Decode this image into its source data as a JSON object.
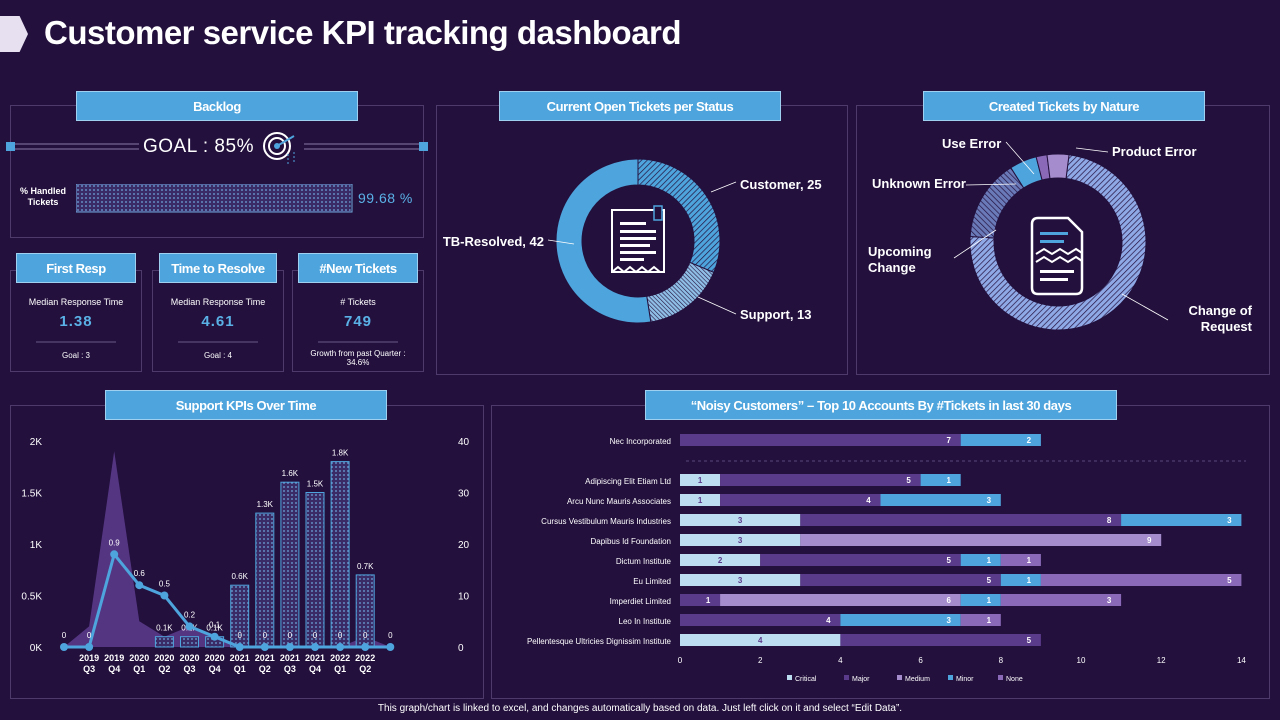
{
  "page": {
    "title": "Customer service KPI tracking dashboard",
    "footer": "This graph/chart is linked to excel, and changes automatically based on data. Just left click on it and select “Edit Data”."
  },
  "colors": {
    "background": "#23103d",
    "accent_blue": "#4ea4dc",
    "light_blue": "#bcdcf0",
    "dark_purple": "#5a3a8a",
    "medium_purple": "#7a5aa8",
    "lavender": "#a58ccc"
  },
  "backlog": {
    "header": "Backlog",
    "goal_text": "GOAL : 85%",
    "handled_label": "% Handled Tickets",
    "handled_value": "99.68 %",
    "handled_fraction": 0.9968
  },
  "kpis": [
    {
      "header": "First Resp",
      "label": "Median Response Time",
      "value": "1.38",
      "goal": "Goal : 3"
    },
    {
      "header": "Time to Resolve",
      "label": "Median Response Time",
      "value": "4.61",
      "goal": "Goal : 4"
    },
    {
      "header": "#New Tickets",
      "label": "# Tickets",
      "value": "749",
      "goal": "Growth from past Quarter : 34.6%"
    }
  ],
  "chart_data": [
    {
      "type": "pie",
      "title": "Current Open Tickets per Status",
      "slices": [
        {
          "label": "Customer, 25",
          "name": "Customer",
          "value": 25
        },
        {
          "label": "Support, 13",
          "name": "Support",
          "value": 13
        },
        {
          "label": "TB-Resolved, 42",
          "name": "TB-Resolved",
          "value": 42
        }
      ]
    },
    {
      "type": "pie",
      "title": "Created Tickets by Nature",
      "slices": [
        {
          "label": "Change of Request",
          "line1": "Change of",
          "line2": "Request",
          "value": 74
        },
        {
          "label": "Upcoming Change",
          "line1": "Upcoming",
          "line2": "Change",
          "value": 15
        },
        {
          "label": "Unknown Error",
          "value": 5
        },
        {
          "label": "Use Error",
          "value": 2
        },
        {
          "label": "Product Error",
          "value": 4
        }
      ]
    },
    {
      "type": "bar",
      "title": "Support KPIs Over Time",
      "categories": [
        {
          "year": "2019",
          "q": "Q3"
        },
        {
          "year": "2019",
          "q": "Q4"
        },
        {
          "year": "2020",
          "q": "Q1"
        },
        {
          "year": "2020",
          "q": "Q2"
        },
        {
          "year": "2020",
          "q": "Q3"
        },
        {
          "year": "2020",
          "q": "Q4"
        },
        {
          "year": "2021",
          "q": "Q1"
        },
        {
          "year": "2021",
          "q": "Q2"
        },
        {
          "year": "2021",
          "q": "Q3"
        },
        {
          "year": "2021",
          "q": "Q4"
        },
        {
          "year": "2022",
          "q": "Q1"
        },
        {
          "year": "2022",
          "q": "Q2"
        }
      ],
      "left_axis": {
        "ticks": [
          "0K",
          "0.5K",
          "1K",
          "1.5K",
          "2K"
        ],
        "max": 2000
      },
      "right_axis": {
        "ticks": [
          "0",
          "10",
          "20",
          "30",
          "40"
        ],
        "max": 40
      },
      "bars": {
        "values": [
          0,
          0,
          0,
          100,
          100,
          100,
          600,
          1300,
          1600,
          1500,
          1800,
          700
        ],
        "labels": [
          "",
          "",
          "",
          "0.1K",
          "0.1K",
          "0.1K",
          "0.6K",
          "1.3K",
          "1.6K",
          "1.5K",
          "1.8K",
          "0.7K"
        ]
      },
      "area": {
        "x": [
          -1,
          0,
          1,
          2,
          3,
          4,
          5,
          6,
          7,
          8,
          9,
          10,
          11,
          12
        ],
        "values": [
          0,
          200,
          1900,
          250,
          100,
          200,
          100,
          20,
          0,
          0,
          0,
          0,
          100,
          0
        ]
      },
      "line": {
        "x": [
          -1,
          0,
          1,
          2,
          3,
          4,
          5,
          6,
          7,
          8,
          9,
          10,
          11,
          12
        ],
        "values": [
          0,
          0,
          0.9,
          0.6,
          0.5,
          0.2,
          0.1,
          0,
          0,
          0,
          0,
          0,
          0,
          0
        ],
        "labels": [
          "0",
          "0",
          "0.9",
          "0.6",
          "0.5",
          "0.2",
          "0.1",
          "0",
          "0",
          "0",
          "0",
          "0",
          "0",
          "0"
        ],
        "scale_max": 2
      }
    },
    {
      "type": "bar",
      "orientation": "horizontal-stacked",
      "title": "“Noisy Customers” – Top 10 Accounts By #Tickets in last 30 days",
      "series": [
        "Critical",
        "Major",
        "Medium",
        "Minor",
        "None"
      ],
      "x_ticks": [
        0,
        2,
        4,
        6,
        8,
        10,
        12,
        14
      ],
      "xlim": [
        0,
        14
      ],
      "rows": [
        {
          "name": "Nec Incorporated",
          "segments": [
            0,
            7,
            0,
            2,
            0
          ]
        },
        {
          "name": "Adipiscing Elit Etiam Ltd",
          "segments": [
            1,
            5,
            0,
            1,
            0
          ]
        },
        {
          "name": "Arcu Nunc Mauris Associates",
          "segments": [
            1,
            4,
            0,
            3,
            0
          ]
        },
        {
          "name": "Cursus Vestibulum Mauris Industries",
          "segments": [
            3,
            8,
            0,
            3,
            0
          ]
        },
        {
          "name": "Dapibus Id Foundation",
          "segments": [
            3,
            0,
            9,
            0,
            0
          ]
        },
        {
          "name": "Dictum Institute",
          "segments": [
            2,
            5,
            0,
            1,
            1
          ]
        },
        {
          "name": "Eu Limited",
          "segments": [
            3,
            5,
            0,
            1,
            5
          ]
        },
        {
          "name": "Imperdiet Limited",
          "segments": [
            0,
            1,
            6,
            1,
            3
          ]
        },
        {
          "name": "Leo In Institute",
          "segments": [
            0,
            4,
            0,
            3,
            1
          ]
        },
        {
          "name": "Pellentesque Ultricies Dignissim Institute",
          "segments": [
            4,
            5,
            0,
            0,
            0
          ]
        }
      ]
    }
  ]
}
